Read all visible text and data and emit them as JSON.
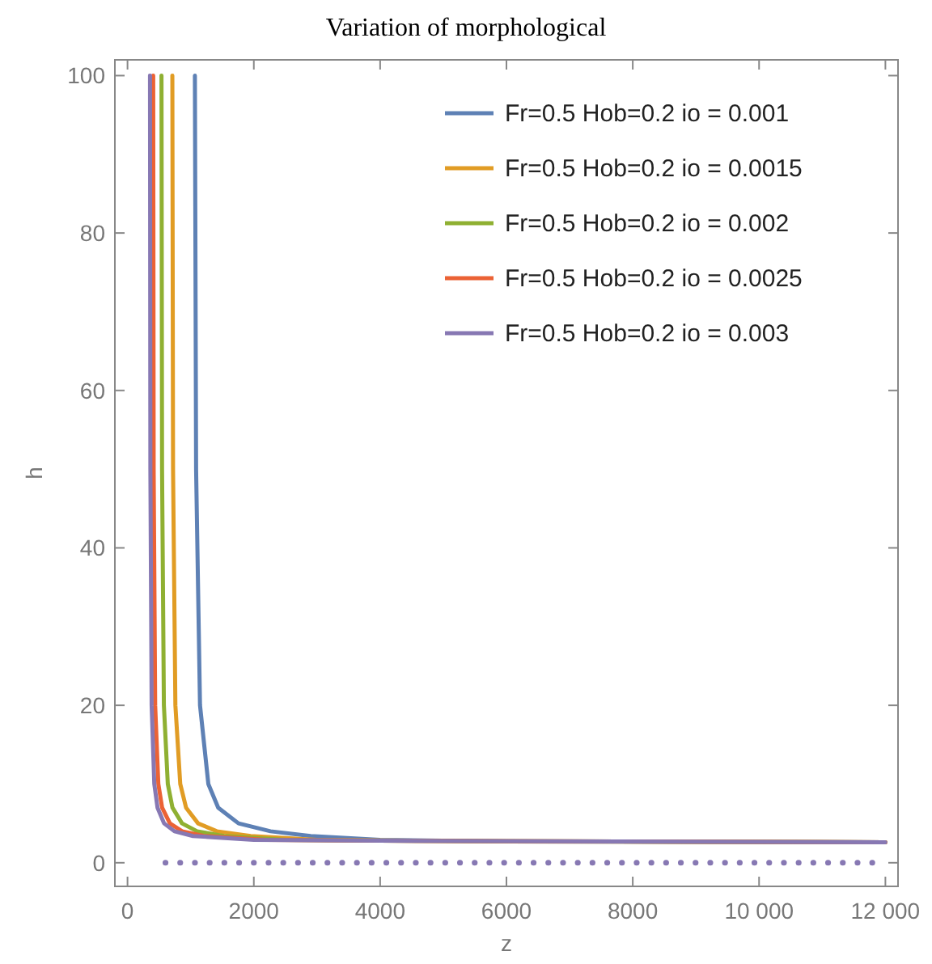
{
  "chart_data": {
    "type": "line",
    "title": "Variation of morphological",
    "xlabel": "z",
    "ylabel": "h",
    "xlim": [
      -200,
      12200
    ],
    "ylim": [
      -3,
      102
    ],
    "xticks": [
      0,
      2000,
      4000,
      6000,
      8000,
      {
        "value": 10000,
        "label": "10 000"
      },
      {
        "value": 12000,
        "label": "12 000"
      }
    ],
    "yticks": [
      0,
      20,
      40,
      60,
      80,
      100
    ],
    "grid": false,
    "legend": "top right",
    "line_style": "solid",
    "series": [
      {
        "name": "Fr=0.5 Hob=0.2 io = 0.001",
        "color": "#5e81b5",
        "x": [
          1067,
          1086,
          1148,
          1280,
          1436,
          1758,
          2264,
          2900,
          4000,
          6000,
          12000
        ],
        "values": [
          100,
          50,
          20,
          10,
          7,
          5,
          4,
          3.4,
          2.9,
          2.7,
          2.6
        ]
      },
      {
        "name": "Fr=0.5 Hob=0.2 io = 0.0015",
        "color": "#e19c24",
        "x": [
          710,
          721,
          758,
          835,
          927,
          1117,
          1414,
          1950,
          3000,
          6000,
          12000
        ],
        "values": [
          100,
          50,
          20,
          10,
          7,
          5,
          4,
          3.4,
          2.9,
          2.7,
          2.6
        ]
      },
      {
        "name": "Fr=0.5 Hob=0.2 io = 0.002",
        "color": "#8fb032",
        "x": [
          538,
          547,
          576,
          638,
          712,
          863,
          1101,
          1530,
          2500,
          4000,
          12000
        ],
        "values": [
          100,
          50,
          20,
          10,
          7,
          5,
          4,
          3.4,
          2.9,
          2.8,
          2.6
        ]
      },
      {
        "name": "Fr=0.5 Hob=0.2 io = 0.0025",
        "color": "#eb6235",
        "x": [
          407,
          414,
          438,
          488,
          548,
          671,
          864,
          1212,
          2200,
          4000,
          12000
        ],
        "values": [
          100,
          50,
          20,
          10,
          7,
          5,
          4,
          3.4,
          2.9,
          2.8,
          2.6
        ]
      },
      {
        "name": "Fr=0.5 Hob=0.2 io = 0.003",
        "color": "#8778b3",
        "x": [
          356,
          362,
          382,
          424,
          475,
          579,
          743,
          1037,
          2000,
          4000,
          12000
        ],
        "values": [
          100,
          50,
          20,
          10,
          7,
          5,
          4,
          3.4,
          2.9,
          2.8,
          2.6
        ]
      },
      {
        "color": "#8778b3",
        "x": [
          600,
          11800
        ],
        "values": [
          0,
          0
        ],
        "line_style": "dotted"
      }
    ]
  }
}
